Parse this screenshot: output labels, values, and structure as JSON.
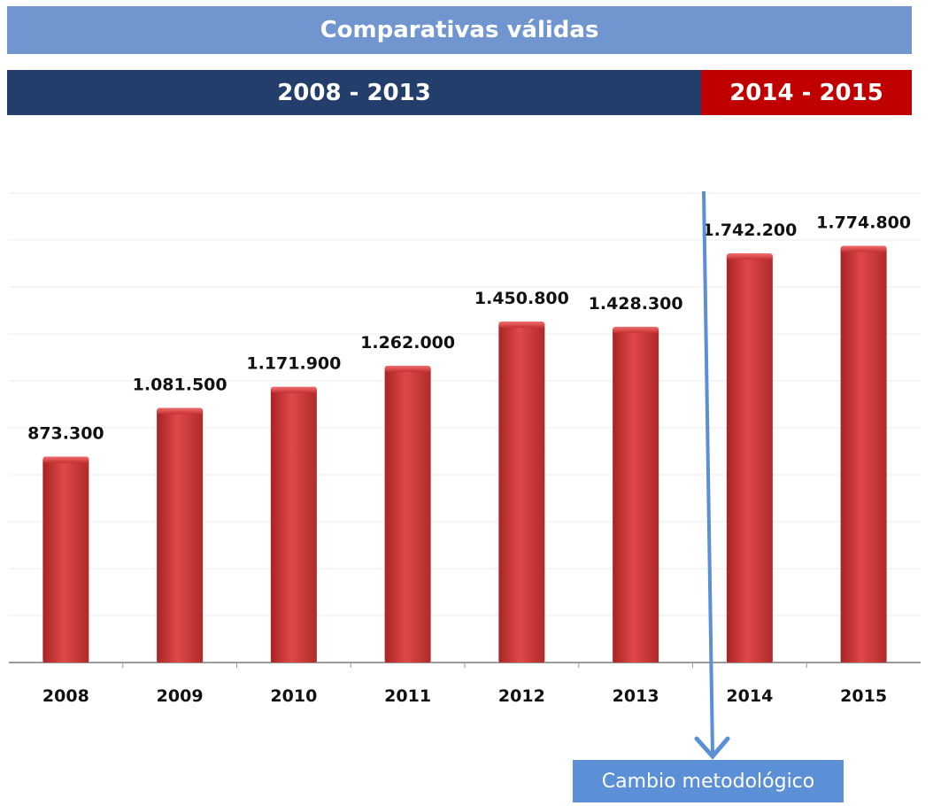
{
  "header": {
    "title": "Comparativas válidas",
    "period_a": "2008 - 2013",
    "period_b": "2014 - 2015"
  },
  "annotation": {
    "label": "Cambio metodológico"
  },
  "colors": {
    "title_bg": "#7196cf",
    "period_a_bg": "#233e6b",
    "period_b_bg": "#c00000",
    "bar": "#d23a3a",
    "arrow": "#5b8fd6"
  },
  "chart_data": {
    "type": "bar",
    "title": "",
    "xlabel": "",
    "ylabel": "",
    "categories": [
      "2008",
      "2009",
      "2010",
      "2011",
      "2012",
      "2013",
      "2014",
      "2015"
    ],
    "values": [
      873300,
      1081500,
      1171900,
      1262000,
      1450800,
      1428300,
      1742200,
      1774800
    ],
    "value_labels": [
      "873.300",
      "1.081.500",
      "1.171.900",
      "1.262.000",
      "1.450.800",
      "1.428.300",
      "1.742.200",
      "1.774.800"
    ],
    "ylim": [
      0,
      2000000
    ],
    "grid": true,
    "legend": "none"
  }
}
